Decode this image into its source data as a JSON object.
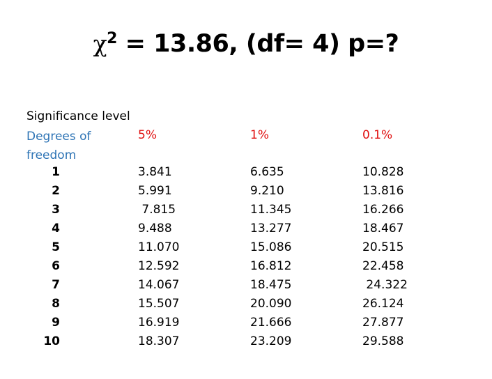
{
  "title": {
    "chi_symbol": "χ",
    "superscript": "2",
    "text": " = 13.86, (df= 4) p=?"
  },
  "table": {
    "significance_label": "Significance level",
    "df_label": "Degrees of freedom",
    "columns": [
      "5%",
      "1%",
      "0.1%"
    ],
    "rows": [
      {
        "df": "1",
        "values": [
          "3.841",
          "6.635",
          "10.828"
        ]
      },
      {
        "df": "2",
        "values": [
          "5.991",
          "9.210",
          "13.816"
        ]
      },
      {
        "df": "3",
        "values": [
          " 7.815",
          "11.345",
          "16.266"
        ]
      },
      {
        "df": "4",
        "values": [
          "9.488",
          "13.277",
          "18.467"
        ]
      },
      {
        "df": "5",
        "values": [
          "11.070",
          "15.086",
          "20.515"
        ]
      },
      {
        "df": "6",
        "values": [
          "12.592",
          "16.812",
          "22.458"
        ]
      },
      {
        "df": "7",
        "values": [
          "14.067",
          "18.475",
          " 24.322"
        ]
      },
      {
        "df": "8",
        "values": [
          "15.507",
          "20.090",
          "26.124"
        ]
      },
      {
        "df": "9",
        "values": [
          "16.919",
          "21.666",
          "27.877"
        ]
      },
      {
        "df": "10",
        "values": [
          "18.307",
          "23.209",
          "29.588"
        ]
      }
    ]
  },
  "colors": {
    "df_label": "#2e74b5",
    "column_headers": "#e01010",
    "text": "#000000"
  }
}
